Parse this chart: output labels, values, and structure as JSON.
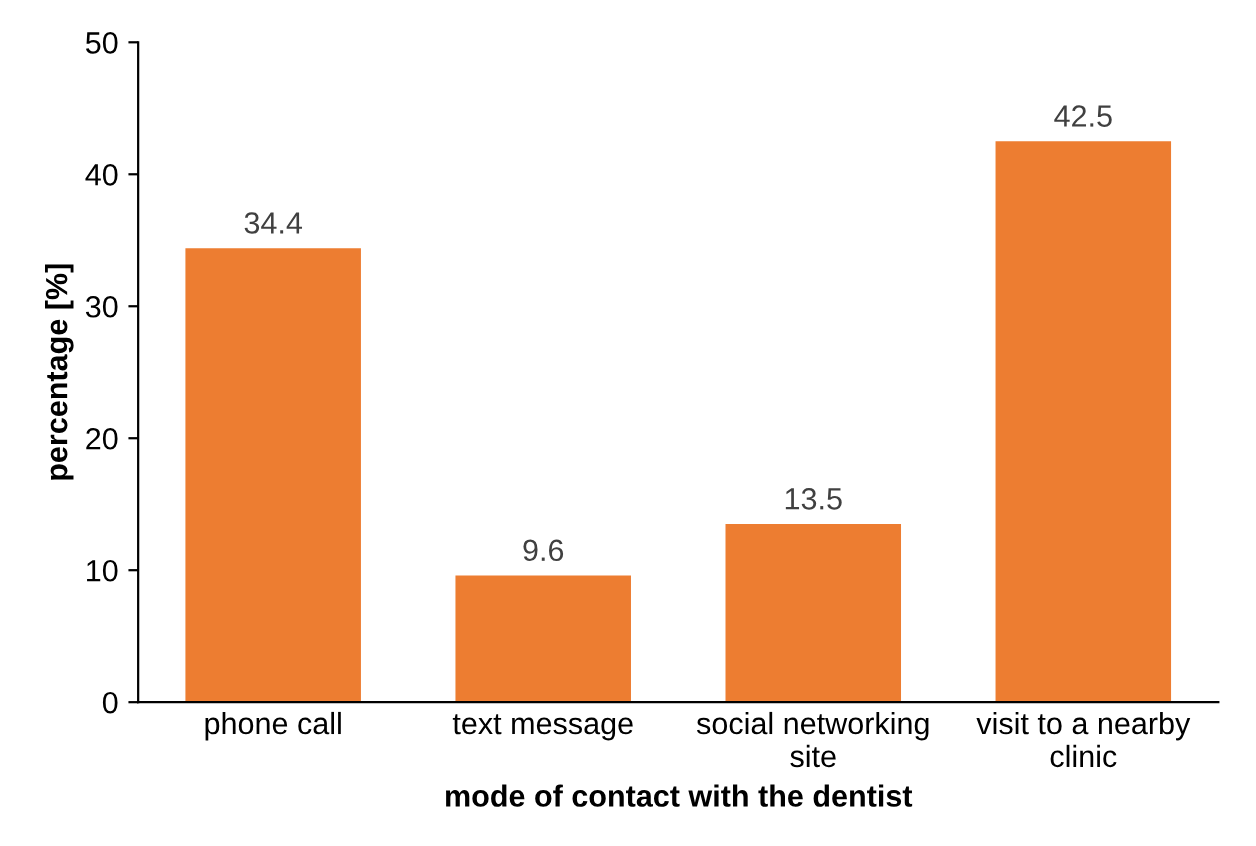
{
  "chart_data": {
    "type": "bar",
    "xlabel": "mode of contact with the dentist",
    "ylabel": "percentage [%]",
    "categories": [
      "phone call",
      "text message",
      "social networking\nsite",
      "visit to a nearby\nclinic"
    ],
    "values": [
      34.4,
      9.6,
      13.5,
      42.5
    ],
    "color": "#ed7d31",
    "ylim": [
      0,
      50
    ],
    "yticks": [
      0,
      10,
      20,
      30,
      40,
      50
    ],
    "grid": false,
    "data_labels": true
  }
}
